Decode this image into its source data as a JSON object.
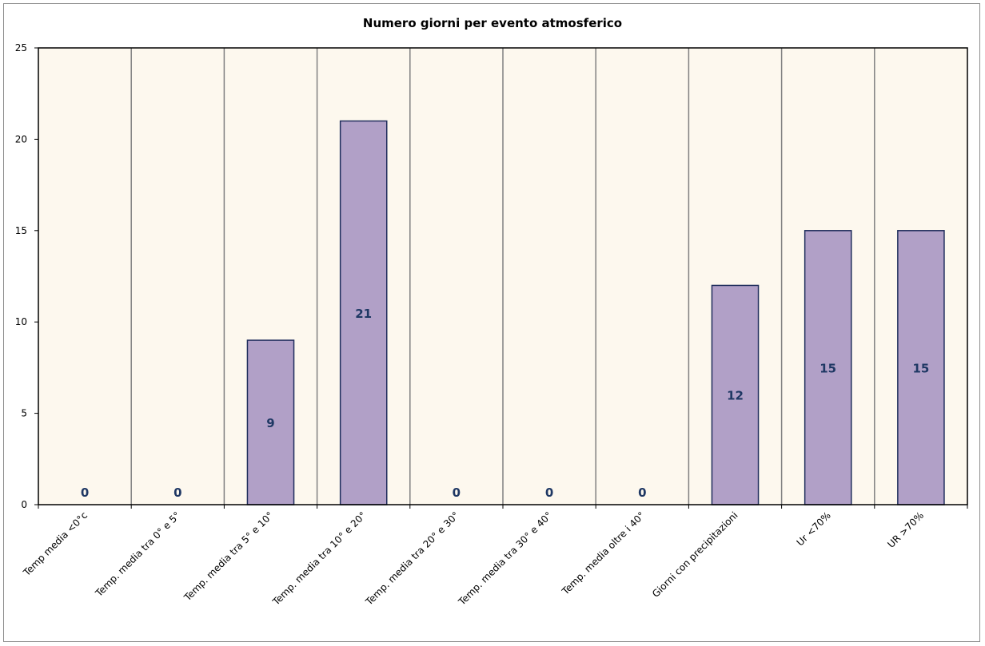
{
  "chart_data": {
    "type": "bar",
    "title": "Numero giorni  per evento atmosferico",
    "xlabel": "",
    "ylabel": "",
    "ylim": [
      0,
      25
    ],
    "yticks": [
      0,
      5,
      10,
      15,
      20,
      25
    ],
    "categories": [
      "Temp media <0°c",
      "Temp. media tra 0° e 5°",
      "Temp. media tra 5° e 10°",
      "Temp. media tra 10° e 20°",
      "Temp. media tra 20° e 30°",
      "Temp. media tra 30° e 40°",
      "Temp. media oltre i 40°",
      "Giorni con precipitazioni",
      "Ur  <70%",
      "UR >70%"
    ],
    "values": [
      0,
      0,
      9,
      21,
      0,
      0,
      0,
      12,
      15,
      15
    ],
    "data_labels": [
      "0",
      "0",
      "9",
      "21",
      "0",
      "0",
      "0",
      "12",
      "15",
      "15"
    ],
    "grid": "vertical",
    "legend": "none",
    "colors": {
      "bar_fill": "#b1a0c7",
      "bar_border": "#1f2d5c",
      "plot_background": "#fdf8ee",
      "gridline": "#808080",
      "data_label": "#1f3864"
    }
  }
}
